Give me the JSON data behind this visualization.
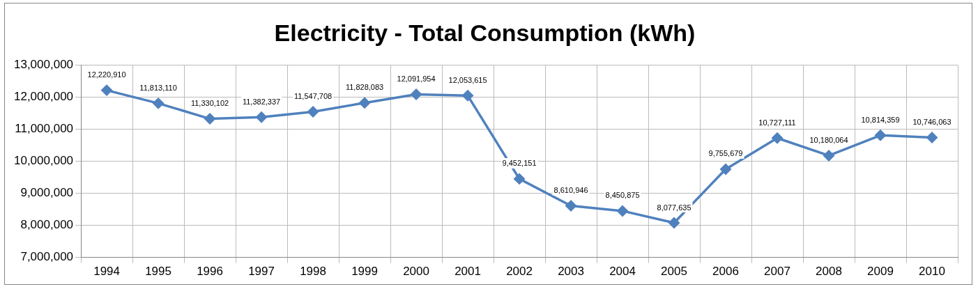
{
  "chart_data": {
    "type": "line",
    "title": "Electricity - Total Consumption (kWh)",
    "categories": [
      "1994",
      "1995",
      "1996",
      "1997",
      "1998",
      "1999",
      "2000",
      "2001",
      "2002",
      "2003",
      "2004",
      "2005",
      "2006",
      "2007",
      "2008",
      "2009",
      "2010"
    ],
    "series": [
      {
        "color": "#4f81bd",
        "values": [
          12220910,
          11813110,
          11330102,
          11382337,
          11547708,
          11828083,
          12091954,
          12053615,
          9452151,
          8610946,
          8450875,
          8077635,
          9755679,
          10727111,
          10180064,
          10814359,
          10746063
        ],
        "value_labels": [
          "12,220,910",
          "11,813,110",
          "11,330,102",
          "11,382,337",
          "11,547,708",
          "11,828,083",
          "12,091,954",
          "12,053,615",
          "9,452,151",
          "8,610,946",
          "8,450,875",
          "8,077,635",
          "9,755,679",
          "10,727,111",
          "10,180,064",
          "10,814,359",
          "10,746,063"
        ]
      }
    ],
    "ylim": [
      7000000,
      13000000
    ],
    "yticks": [
      {
        "value": 7000000,
        "label": "7,000,000"
      },
      {
        "value": 8000000,
        "label": "8,000,000"
      },
      {
        "value": 9000000,
        "label": "9,000,000"
      },
      {
        "value": 10000000,
        "label": "10,000,000"
      },
      {
        "value": 11000000,
        "label": "11,000,000"
      },
      {
        "value": 12000000,
        "label": "12,000,000"
      },
      {
        "value": 13000000,
        "label": "13,000,000"
      }
    ],
    "grid": true,
    "legend": false,
    "marker": "diamond",
    "line_style": "solid"
  }
}
